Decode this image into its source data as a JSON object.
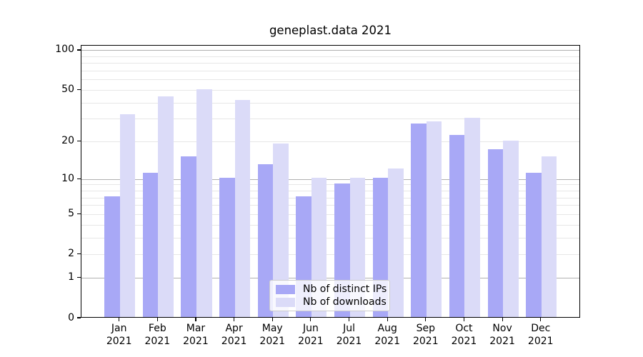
{
  "chart_data": {
    "type": "bar",
    "title": "geneplast.data 2021",
    "categories": [
      "Jan",
      "Feb",
      "Mar",
      "Apr",
      "May",
      "Jun",
      "Jul",
      "Aug",
      "Sep",
      "Oct",
      "Nov",
      "Dec"
    ],
    "year": "2021",
    "series": [
      {
        "name": "Nb of distinct IPs",
        "color": "#a8a8f6",
        "values": [
          7,
          11,
          15,
          10,
          13,
          7,
          9,
          10,
          27,
          22,
          17,
          11
        ]
      },
      {
        "name": "Nb of downloads",
        "color": "#dbdbf8",
        "values": [
          32,
          44,
          50,
          41,
          19,
          10,
          10,
          12,
          28,
          30,
          20,
          15
        ]
      }
    ],
    "xlabel": "",
    "ylabel": "",
    "yscale": "log1p",
    "yticks": [
      0,
      1,
      2,
      5,
      10,
      20,
      50,
      100
    ],
    "ylim": [
      0,
      110
    ],
    "grid": true,
    "legend_position": "lower center"
  },
  "colors": {
    "background": "#ffffff",
    "spine": "#000000",
    "grid_major": "#b0b0b0",
    "grid_minor": "#e7e7e7",
    "text": "#000000",
    "legend_border": "#cccccc",
    "legend_background": "rgba(255,255,255,0.8)"
  }
}
